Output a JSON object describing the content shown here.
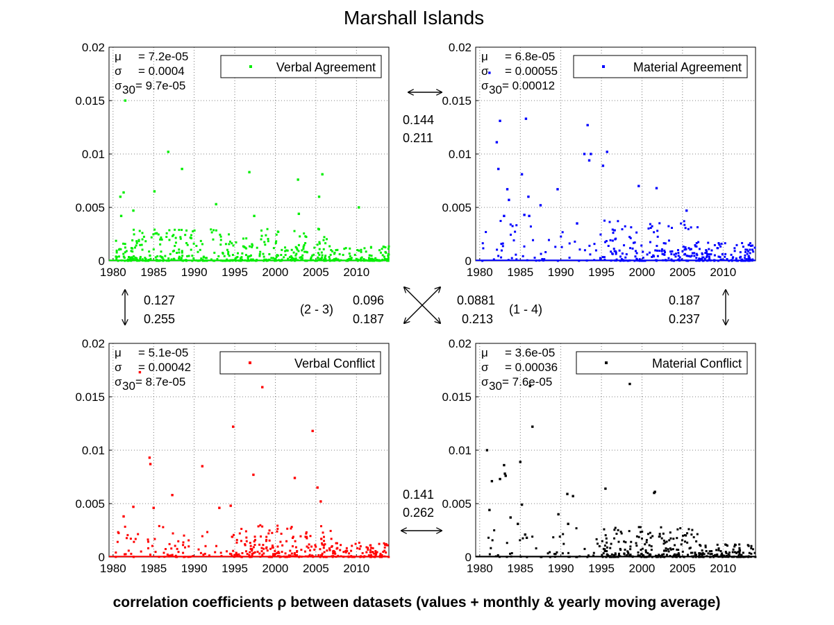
{
  "title": "Marshall Islands",
  "footer": "correlation coefficients ρ between datasets (values + monthly & yearly moving average)",
  "chart_data": [
    {
      "type": "scatter",
      "panel": "top-left",
      "series_name": "Verbal Agreement",
      "color": "#00ee00",
      "xlim": [
        1979.5,
        2014
      ],
      "ylim": [
        0,
        0.02
      ],
      "xticks": [
        "1980",
        "1985",
        "1990",
        "1995",
        "2000",
        "2005",
        "2010"
      ],
      "yticks": [
        "0",
        "0.005",
        "0.01",
        "0.015",
        "0.02"
      ],
      "legend_position": "top-right",
      "stats": {
        "mu": "= 7.2e-05",
        "sigma": "= 0.0004",
        "sigma30": "= 9.7e-05"
      },
      "highlights": [
        [
          1981.5,
          0.015
        ],
        [
          1986.8,
          0.0102
        ],
        [
          1988.5,
          0.0086
        ],
        [
          1996.8,
          0.0083
        ],
        [
          2002.8,
          0.0076
        ],
        [
          2005.8,
          0.0081
        ],
        [
          2005.4,
          0.006
        ],
        [
          1985.1,
          0.0065
        ],
        [
          1981.3,
          0.0064
        ],
        [
          1980.9,
          0.006
        ],
        [
          1992.7,
          0.0053
        ],
        [
          2010.3,
          0.005
        ],
        [
          1982.5,
          0.0047
        ],
        [
          2002.9,
          0.0044
        ],
        [
          1981.0,
          0.0042
        ],
        [
          1997.4,
          0.0042
        ]
      ],
      "dense_from": 1980.3,
      "typical_max": 0.003
    },
    {
      "type": "scatter",
      "panel": "top-right",
      "series_name": "Material Agreement",
      "color": "#0000ff",
      "xlim": [
        1979.5,
        2014
      ],
      "ylim": [
        0,
        0.02
      ],
      "xticks": [
        "1980",
        "1985",
        "1990",
        "1995",
        "2000",
        "2005",
        "2010"
      ],
      "yticks": [
        "0",
        "0.005",
        "0.01",
        "0.015",
        "0.02"
      ],
      "legend_position": "top-right",
      "stats": {
        "mu": "= 6.8e-05",
        "sigma": "= 0.00055",
        "sigma30": "= 0.00012"
      },
      "highlights": [
        [
          1982.5,
          0.0131
        ],
        [
          1985.7,
          0.0133
        ],
        [
          1982.1,
          0.0111
        ],
        [
          1993.3,
          0.0127
        ],
        [
          1992.9,
          0.01
        ],
        [
          1993.7,
          0.01
        ],
        [
          1995.7,
          0.0102
        ],
        [
          1982.3,
          0.0086
        ],
        [
          1985.2,
          0.0081
        ],
        [
          1995.2,
          0.0089
        ],
        [
          1993.5,
          0.0094
        ],
        [
          1999.6,
          0.007
        ],
        [
          2001.8,
          0.0068
        ],
        [
          1989.6,
          0.0067
        ],
        [
          1983.4,
          0.0067
        ],
        [
          1986.0,
          0.006
        ],
        [
          1983.6,
          0.0057
        ],
        [
          1987.5,
          0.0052
        ],
        [
          1985.5,
          0.0043
        ],
        [
          1986.1,
          0.0042
        ],
        [
          2005.5,
          0.0047
        ],
        [
          1981.2,
          0.0176
        ],
        [
          1983.0,
          0.0042
        ],
        [
          1992.0,
          0.0035
        ]
      ],
      "dense_from": 1996.0,
      "typical_max": 0.0038
    },
    {
      "type": "scatter",
      "panel": "bottom-left",
      "series_name": "Verbal Conflict",
      "color": "#ff0000",
      "xlim": [
        1979.5,
        2014
      ],
      "ylim": [
        0,
        0.02
      ],
      "xticks": [
        "1980",
        "1985",
        "1990",
        "1995",
        "2000",
        "2005",
        "2010"
      ],
      "yticks": [
        "0",
        "0.005",
        "0.01",
        "0.015",
        "0.02"
      ],
      "legend_position": "top-right",
      "stats": {
        "mu": "= 5.1e-05",
        "sigma": "= 0.00042",
        "sigma30": "= 8.7e-05"
      },
      "highlights": [
        [
          1983.3,
          0.0173
        ],
        [
          1998.4,
          0.0159
        ],
        [
          1994.8,
          0.0122
        ],
        [
          2004.6,
          0.0118
        ],
        [
          1991.0,
          0.0085
        ],
        [
          1984.5,
          0.0093
        ],
        [
          1984.6,
          0.0087
        ],
        [
          1997.3,
          0.0077
        ],
        [
          2002.4,
          0.0074
        ],
        [
          2005.2,
          0.0065
        ],
        [
          1987.3,
          0.0058
        ],
        [
          1982.5,
          0.0047
        ],
        [
          1981.3,
          0.0038
        ],
        [
          1985.0,
          0.0046
        ],
        [
          1993.1,
          0.0046
        ],
        [
          1994.5,
          0.0048
        ],
        [
          2005.6,
          0.0052
        ]
      ],
      "dense_from": 1994.5,
      "typical_max": 0.003
    },
    {
      "type": "scatter",
      "panel": "bottom-right",
      "series_name": "Material Conflict",
      "color": "#000000",
      "xlim": [
        1979.5,
        2014
      ],
      "ylim": [
        0,
        0.02
      ],
      "xticks": [
        "1980",
        "1985",
        "1990",
        "1995",
        "2000",
        "2005",
        "2010"
      ],
      "yticks": [
        "0",
        "0.005",
        "0.01",
        "0.015",
        "0.02"
      ],
      "legend_position": "top-right",
      "stats": {
        "mu": "= 3.6e-05",
        "sigma": "= 0.00036",
        "sigma30": "= 7.6e-05"
      },
      "highlights": [
        [
          1998.5,
          0.0162
        ],
        [
          1986.2,
          0.016
        ],
        [
          1986.5,
          0.0122
        ],
        [
          1980.9,
          0.01
        ],
        [
          1983.0,
          0.0086
        ],
        [
          1983.1,
          0.0078
        ],
        [
          1983.2,
          0.0076
        ],
        [
          1982.5,
          0.0073
        ],
        [
          1981.5,
          0.0071
        ],
        [
          1985.0,
          0.0089
        ],
        [
          2001.5,
          0.006
        ],
        [
          2001.6,
          0.0061
        ],
        [
          1990.8,
          0.0059
        ],
        [
          1991.5,
          0.0057
        ],
        [
          1995.5,
          0.0064
        ],
        [
          1981.2,
          0.0044
        ],
        [
          1985.2,
          0.0049
        ],
        [
          1989.7,
          0.004
        ],
        [
          1983.8,
          0.0037
        ],
        [
          1990.9,
          0.0031
        ],
        [
          1984.7,
          0.0031
        ],
        [
          1985.6,
          0.0021
        ],
        [
          1985.8,
          0.0018
        ]
      ],
      "dense_from": 1995.0,
      "typical_max": 0.0028
    }
  ],
  "correlations": {
    "top_pair": {
      "value1": "0.144",
      "value2": "0.211"
    },
    "bottom_pair": {
      "value1": "0.141",
      "value2": "0.262"
    },
    "left_pair": {
      "value1": "0.127",
      "value2": "0.255"
    },
    "right_pair": {
      "value1": "0.187",
      "value2": "0.237"
    },
    "diag_2_3": {
      "label": "(2 - 3)",
      "value1": "0.096",
      "value2": "0.187"
    },
    "diag_1_4": {
      "label": "(1 - 4)",
      "value1": "0.0881",
      "value2": "0.213"
    }
  },
  "stat_labels": {
    "mu": "μ",
    "sigma": "σ",
    "sigma30_base": "σ",
    "sigma30_sub": "30"
  }
}
